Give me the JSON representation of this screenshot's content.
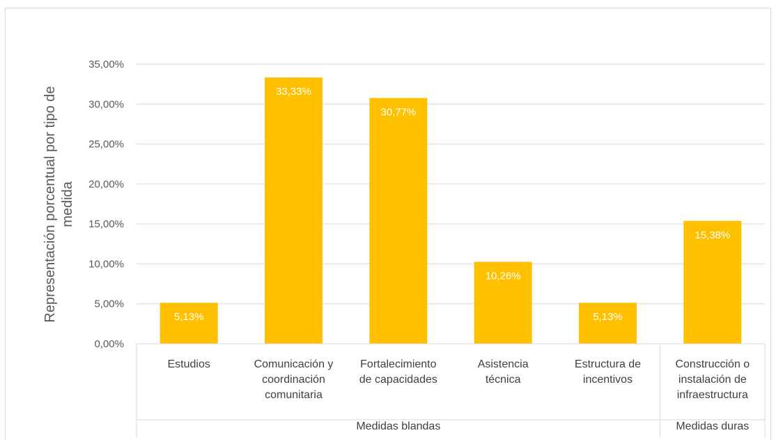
{
  "chart_data": {
    "type": "bar",
    "title": "",
    "ylabel": "Representación porcentual por tipo de medida",
    "xlabel": "",
    "ylim": [
      0,
      35
    ],
    "yticks": [
      "0,00%",
      "5,00%",
      "10,00%",
      "15,00%",
      "20,00%",
      "25,00%",
      "30,00%",
      "35,00%"
    ],
    "ytick_values": [
      0,
      5,
      10,
      15,
      20,
      25,
      30,
      35
    ],
    "grid": true,
    "legend": "none",
    "bar_color": "#FFC000",
    "categories": [
      "Estudios",
      "Comunicación y coordinación comunitaria",
      "Fortalecimiento de capacidades",
      "Asistencia técnica",
      "Estructura de incentivos",
      "Construcción o instalación de infraestructura"
    ],
    "category_lines": [
      [
        "Estudios"
      ],
      [
        "Comunicación y",
        "coordinación",
        "comunitaria"
      ],
      [
        "Fortalecimiento",
        "de capacidades"
      ],
      [
        "Asistencia",
        "técnica"
      ],
      [
        "Estructura de",
        "incentivos"
      ],
      [
        "Construcción o",
        "instalación de",
        "infraestructura"
      ]
    ],
    "values": [
      5.13,
      33.33,
      30.77,
      10.26,
      5.13,
      15.38
    ],
    "data_labels": [
      "5,13%",
      "33,33%",
      "30,77%",
      "10,26%",
      "5,13%",
      "15,38%"
    ],
    "groups": [
      {
        "name": "Medidas blandas",
        "count": 5
      },
      {
        "name": "Medidas duras",
        "count": 1
      }
    ]
  }
}
